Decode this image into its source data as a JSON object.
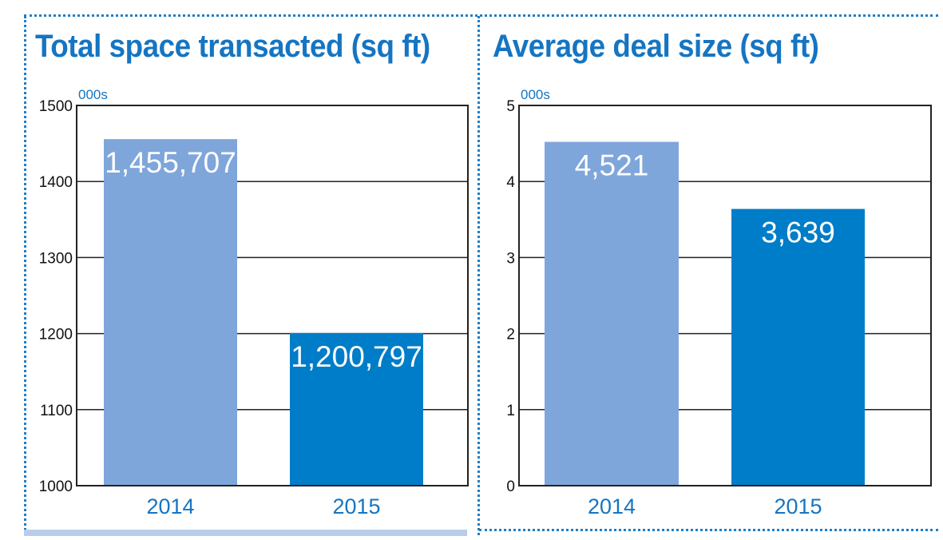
{
  "colors": {
    "accent": "#1575c2",
    "bar_2014": "#7fa6da",
    "bar_2015": "#007dc8"
  },
  "chart_data": [
    {
      "type": "bar",
      "title": "Total space transacted (sq ft)",
      "unit_label": "000s",
      "categories": [
        "2014",
        "2015"
      ],
      "values": [
        1455.707,
        1200.797
      ],
      "data_labels": [
        "1,455,707",
        "1,200,797"
      ],
      "ylim": [
        1000,
        1500
      ],
      "yticks": [
        1000,
        1100,
        1200,
        1300,
        1400,
        1500
      ],
      "grid": true,
      "xlabel": "",
      "ylabel": ""
    },
    {
      "type": "bar",
      "title": "Average deal size (sq ft)",
      "unit_label": "000s",
      "categories": [
        "2014",
        "2015"
      ],
      "values": [
        4.521,
        3.639
      ],
      "data_labels": [
        "4,521",
        "3,639"
      ],
      "ylim": [
        0,
        5
      ],
      "yticks": [
        0,
        1,
        2,
        3,
        4,
        5
      ],
      "grid": true,
      "xlabel": "",
      "ylabel": ""
    }
  ]
}
